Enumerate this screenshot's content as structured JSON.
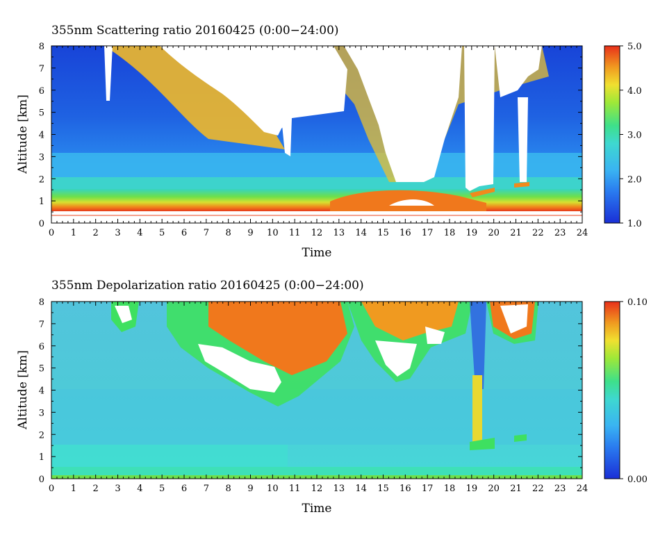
{
  "chart_data": [
    {
      "type": "heatmap",
      "title": "355nm Scattering ratio  20160425 (0:00−24:00)",
      "xlabel": "Time",
      "ylabel": "Altitude [km]",
      "xlim": [
        0,
        24
      ],
      "ylim": [
        0,
        8
      ],
      "x_ticks": [
        "0",
        "1",
        "2",
        "3",
        "4",
        "5",
        "6",
        "7",
        "8",
        "9",
        "10",
        "11",
        "12",
        "13",
        "14",
        "15",
        "16",
        "17",
        "18",
        "19",
        "20",
        "21",
        "22",
        "23",
        "24"
      ],
      "y_ticks": [
        "0",
        "1",
        "2",
        "3",
        "4",
        "5",
        "6",
        "7",
        "8"
      ],
      "colorbar": {
        "min": 1.0,
        "max": 5.0,
        "ticks": [
          "1.0",
          "2.0",
          "3.0",
          "4.0",
          "5.0"
        ]
      },
      "features": {
        "aerosol_layer_top_km": 1.5,
        "elevated_aerosol_time_range": [
          13,
          18
        ],
        "cloud_regions_saturated": [
          {
            "time": [
              4.8,
              10.5
            ],
            "altitude": [
              4.5,
              8.0
            ]
          },
          {
            "time": [
              10.5,
              13.5
            ],
            "altitude": [
              5.0,
              8.0
            ]
          },
          {
            "time": [
              13.5,
              18.5
            ],
            "altitude": [
              2.0,
              8.0
            ]
          },
          {
            "time": [
              18.7,
              20.0
            ],
            "altitude": [
              1.5,
              8.0
            ]
          },
          {
            "time": [
              20.0,
              22.0
            ],
            "altitude": [
              6.0,
              8.0
            ]
          }
        ]
      }
    },
    {
      "type": "heatmap",
      "title": "355nm Depolarization ratio  20160425 (0:00−24:00)",
      "xlabel": "Time",
      "ylabel": "Altitude [km]",
      "xlim": [
        0,
        24
      ],
      "ylim": [
        0,
        8
      ],
      "x_ticks": [
        "0",
        "1",
        "2",
        "3",
        "4",
        "5",
        "6",
        "7",
        "8",
        "9",
        "10",
        "11",
        "12",
        "13",
        "14",
        "15",
        "16",
        "17",
        "18",
        "19",
        "20",
        "21",
        "22",
        "23",
        "24"
      ],
      "y_ticks": [
        "0",
        "1",
        "2",
        "3",
        "4",
        "5",
        "6",
        "7",
        "8"
      ],
      "colorbar": {
        "min": 0.0,
        "max": 0.1,
        "ticks": [
          "0.00",
          "0.10"
        ]
      },
      "features": {
        "ice_cloud_regions": [
          {
            "time": [
              6.5,
              10.8
            ],
            "altitude": [
              3.8,
              6.0
            ]
          },
          {
            "time": [
              8.0,
              13.5
            ],
            "altitude": [
              5.5,
              8.0
            ]
          },
          {
            "time": [
              14.5,
              16.0
            ],
            "altitude": [
              4.5,
              6.5
            ]
          },
          {
            "time": [
              19.0,
              19.5
            ],
            "altitude": [
              1.5,
              4.5
            ]
          }
        ]
      }
    }
  ]
}
